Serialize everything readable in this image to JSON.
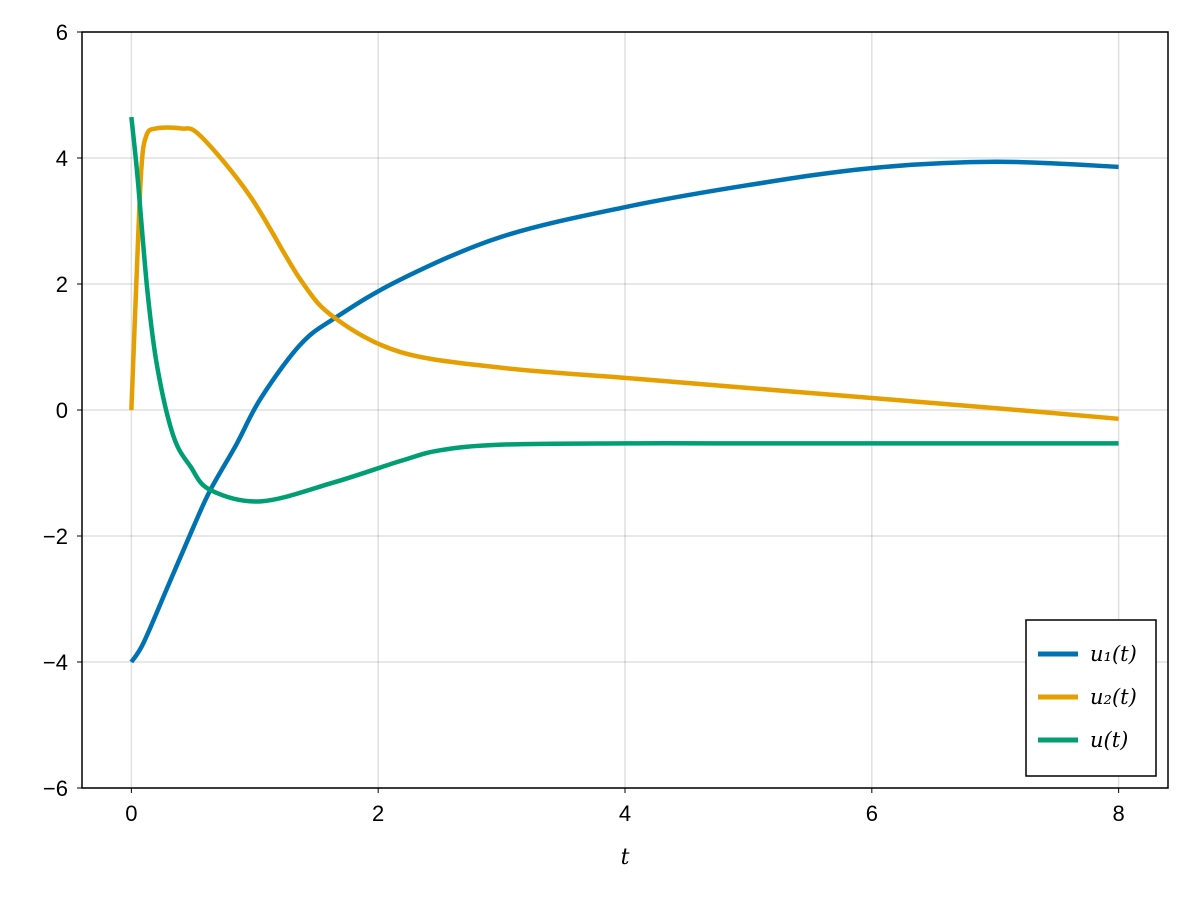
{
  "chart_data": {
    "type": "line",
    "title": "",
    "xlabel": "t",
    "ylabel": "",
    "xlim": [
      -0.4,
      8.4
    ],
    "ylim": [
      -6,
      6
    ],
    "xticks": [
      "0",
      "2",
      "4",
      "6",
      "8"
    ],
    "yticks": [
      "-6",
      "-4",
      "-2",
      "0",
      "2",
      "4",
      "6"
    ],
    "grid": true,
    "legend_position": "bottom-right",
    "series": [
      {
        "name": "u₁(t)",
        "color": "#0072b2",
        "x": [
          0,
          0.1,
          0.3,
          0.5,
          0.64,
          0.85,
          1.05,
          1.37,
          1.65,
          2.18,
          3,
          4,
          5,
          6,
          7,
          8
        ],
        "y": [
          -4,
          -3.69,
          -2.78,
          -1.87,
          -1.27,
          -0.55,
          0.19,
          1.04,
          1.46,
          2.07,
          2.75,
          3.22,
          3.57,
          3.84,
          3.94,
          3.86
        ]
      },
      {
        "name": "u₂(t)",
        "color": "#e69f00",
        "x": [
          0,
          0.04,
          0.08,
          0.12,
          0.2,
          0.4,
          0.56,
          0.96,
          1.37,
          1.65,
          2.18,
          3,
          4,
          5,
          6,
          7,
          8
        ],
        "y": [
          0,
          2.0,
          3.8,
          4.35,
          4.47,
          4.47,
          4.35,
          3.4,
          2.07,
          1.46,
          0.92,
          0.67,
          0.51,
          0.35,
          0.19,
          0.03,
          -0.14
        ]
      },
      {
        "name": "u(t)",
        "color": "#009e73",
        "x": [
          0,
          0.05,
          0.13,
          0.21,
          0.34,
          0.48,
          0.64,
          1.05,
          1.64,
          2.18,
          2.5,
          3,
          4,
          5,
          6,
          7,
          8
        ],
        "y": [
          4.65,
          3.7,
          1.89,
          0.68,
          -0.41,
          -0.9,
          -1.27,
          -1.45,
          -1.15,
          -0.81,
          -0.64,
          -0.55,
          -0.53,
          -0.53,
          -0.53,
          -0.53,
          -0.53
        ]
      }
    ]
  }
}
